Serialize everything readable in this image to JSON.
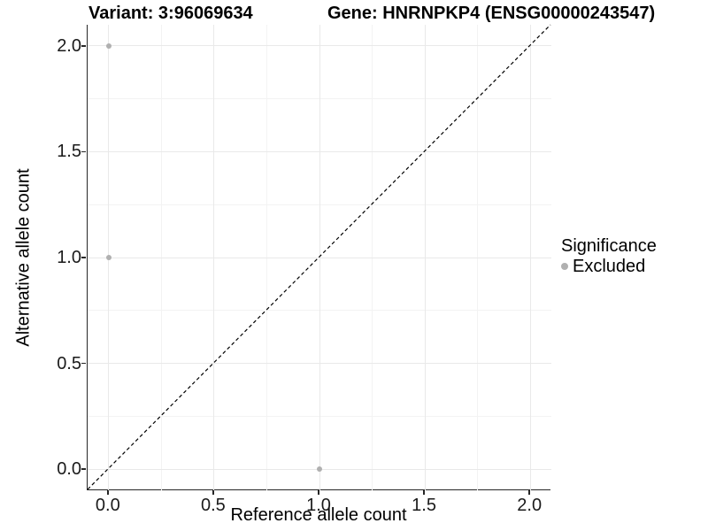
{
  "colors": {
    "grid_major": "#e9e9e9",
    "grid_minor": "#f3f3f3",
    "axis_line": "#262626",
    "tick_text": "#1a1a1a",
    "excluded_point": "#b0b0b0",
    "identity_line": "#000000"
  },
  "chart_data": {
    "type": "scatter",
    "title_left": "Variant: 3:96069634",
    "title_right": "Gene: HNRNPKP4 (ENSG00000243547)",
    "xlabel": "Reference allele count",
    "ylabel": "Alternative allele count",
    "xlim": [
      -0.1,
      2.1
    ],
    "ylim": [
      -0.1,
      2.1
    ],
    "x_ticks": [
      0,
      0.5,
      1.0,
      1.5,
      2.0
    ],
    "x_tick_labels": [
      "0.0",
      "0.5",
      "1.0",
      "1.5",
      "2.0"
    ],
    "y_ticks": [
      0,
      0.5,
      1.0,
      1.5,
      2.0
    ],
    "y_tick_labels": [
      "0.0",
      "0.5",
      "1.0",
      "1.5",
      "2.0"
    ],
    "x_minor_ticks": [
      0.25,
      0.75,
      1.25,
      1.75
    ],
    "y_minor_ticks": [
      0.25,
      0.75,
      1.25,
      1.75
    ],
    "grid": "major+minor",
    "legend_position": "right",
    "identity_line": {
      "equation": "y = x",
      "style": "dashed",
      "color": "#000000",
      "from": [
        -0.1,
        -0.1
      ],
      "to": [
        2.1,
        2.1
      ]
    },
    "series": [
      {
        "name": "Excluded",
        "color": "#b0b0b0",
        "points": [
          {
            "x": 0,
            "y": 2
          },
          {
            "x": 0,
            "y": 1
          },
          {
            "x": 1,
            "y": 0
          }
        ]
      }
    ],
    "legend": {
      "title": "Significance",
      "items": [
        {
          "label": "Excluded",
          "color": "#b0b0b0"
        }
      ]
    }
  }
}
